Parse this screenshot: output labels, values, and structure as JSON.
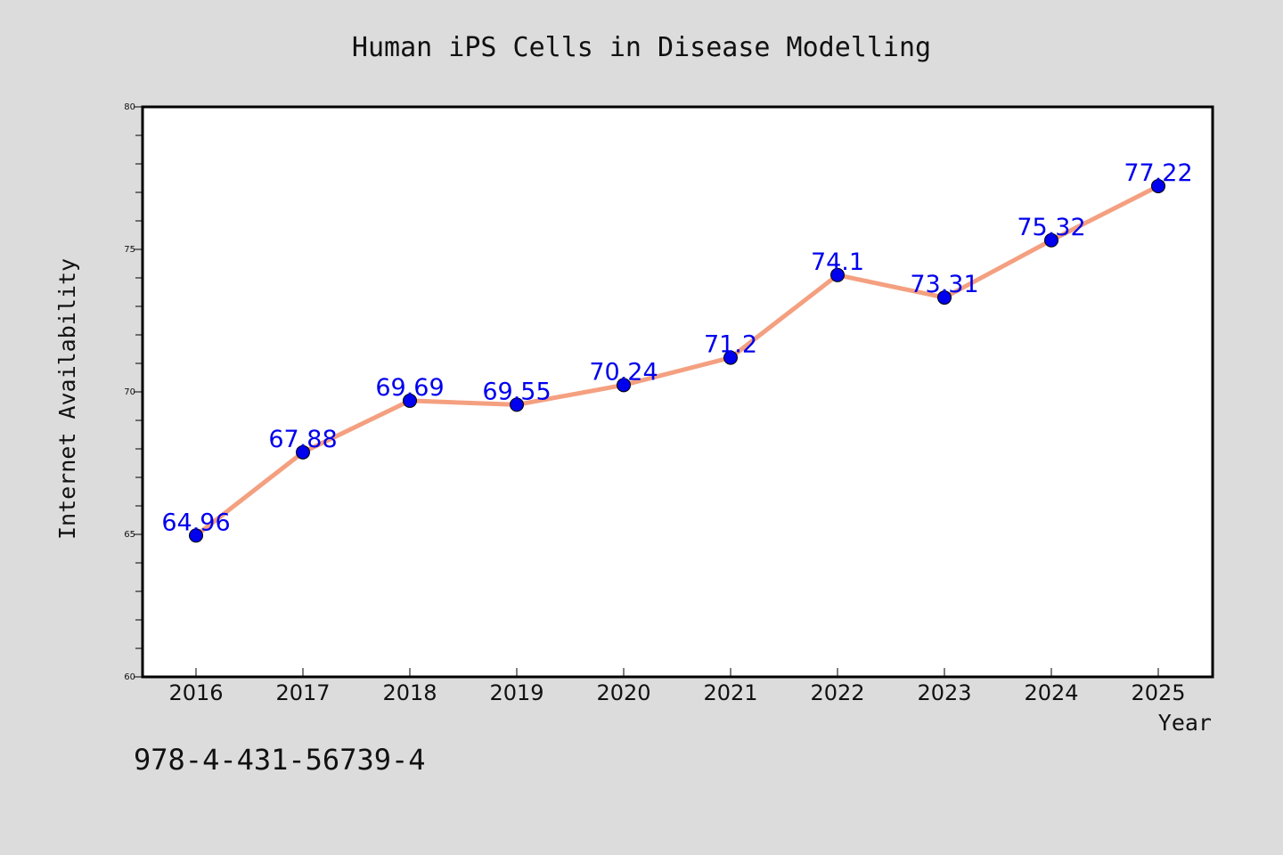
{
  "chart_data": {
    "type": "line",
    "title": "Human iPS Cells in Disease Modelling",
    "xlabel": "Year",
    "ylabel": "Internet Availability",
    "categories": [
      "2016",
      "2017",
      "2018",
      "2019",
      "2020",
      "2021",
      "2022",
      "2023",
      "2024",
      "2025"
    ],
    "series": [
      {
        "values": [
          64.96,
          67.88,
          69.69,
          69.55,
          70.24,
          71.2,
          74.1,
          73.31,
          75.32,
          77.22
        ],
        "labels": [
          "64.96",
          "67.88",
          "69.69",
          "69.55",
          "70.24",
          "71.2",
          "74.1",
          "73.31",
          "75.32",
          "77.22"
        ],
        "line_color": "#f4a080",
        "marker_color": "#0000ee"
      }
    ],
    "ylim": [
      60,
      80
    ],
    "yticks": [
      "60",
      "65",
      "70",
      "75",
      "80"
    ],
    "grid": false,
    "legend": "none"
  },
  "footer_text": "978-4-431-56739-4",
  "colors": {
    "background": "#dcdcdc",
    "plot_background": "#ffffff",
    "line": "#f4a080",
    "marker": "#0000ee",
    "data_label": "#0000ee"
  }
}
